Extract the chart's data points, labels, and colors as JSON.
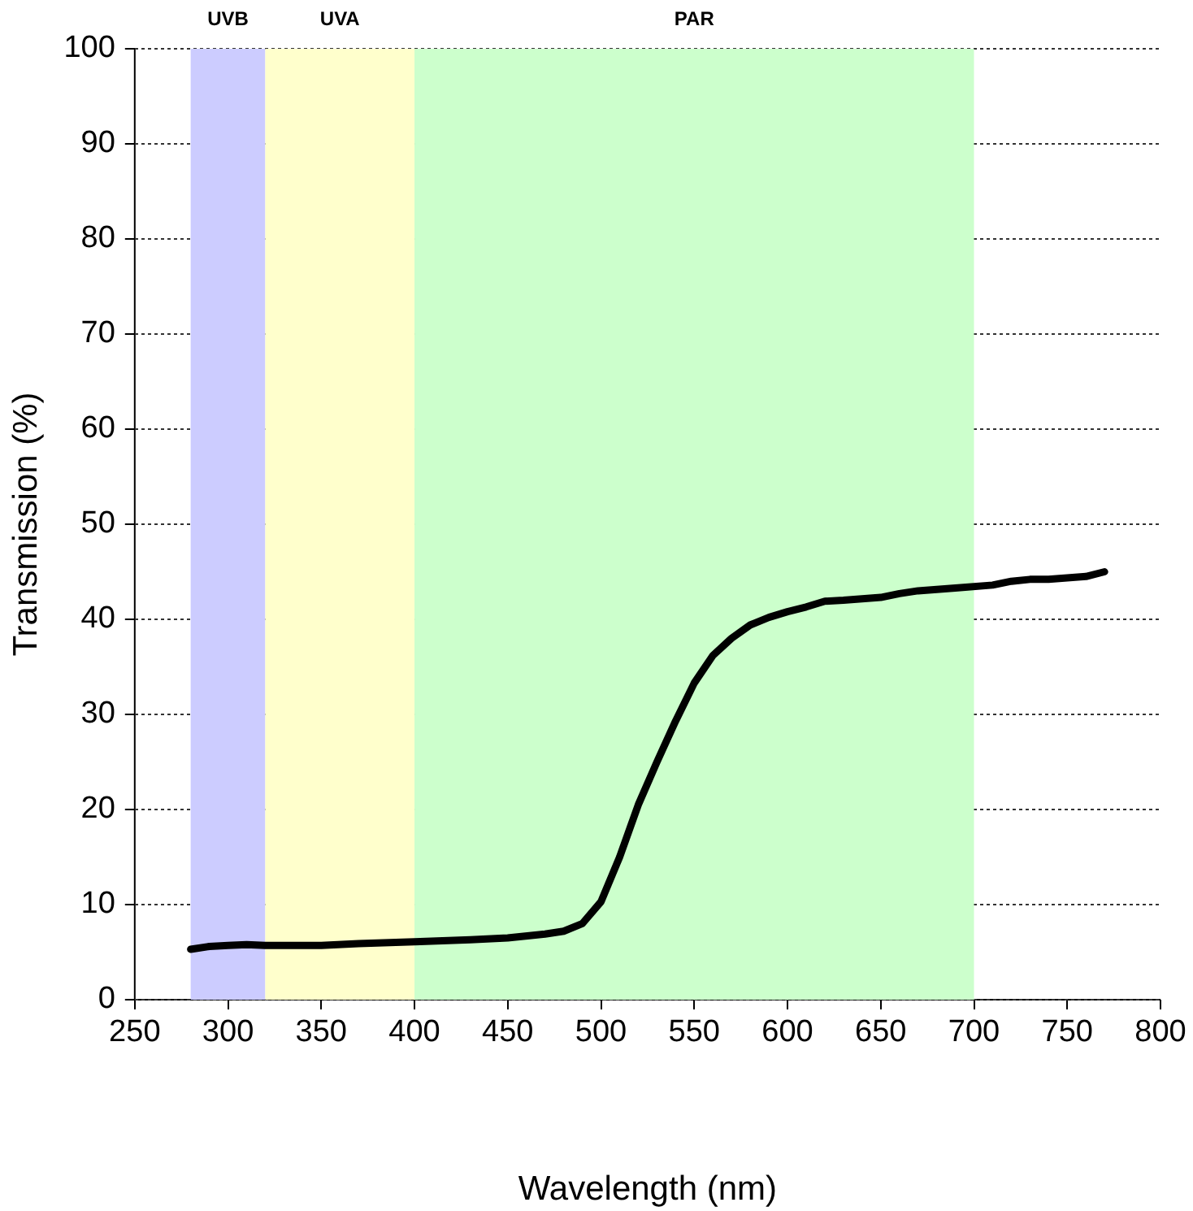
{
  "chart_data": {
    "type": "line",
    "xlabel": "Wavelength (nm)",
    "ylabel": "Transmission (%)",
    "x": [
      280,
      290,
      300,
      310,
      320,
      350,
      370,
      400,
      430,
      450,
      470,
      480,
      490,
      500,
      510,
      520,
      530,
      540,
      550,
      560,
      570,
      580,
      590,
      600,
      610,
      620,
      630,
      650,
      660,
      670,
      690,
      710,
      720,
      730,
      740,
      760,
      770
    ],
    "series": [
      {
        "color": "#000000",
        "values": [
          5.3,
          5.6,
          5.7,
          5.8,
          5.7,
          5.7,
          5.9,
          6.1,
          6.3,
          6.5,
          6.9,
          7.2,
          8.0,
          10.3,
          15,
          20.5,
          25,
          29.3,
          33.3,
          36.2,
          38,
          39.4,
          40.2,
          40.8,
          41.3,
          41.9,
          42,
          42.3,
          42.7,
          43,
          43.3,
          43.6,
          44,
          44.2,
          44.2,
          44.5,
          45
        ]
      }
    ],
    "xlim": [
      250,
      800
    ],
    "xticks": [
      250,
      300,
      350,
      400,
      450,
      500,
      550,
      600,
      650,
      700,
      750,
      800
    ],
    "ylim": [
      0,
      100
    ],
    "yticks": [
      0,
      10,
      20,
      30,
      40,
      50,
      60,
      70,
      80,
      90,
      100
    ],
    "bands": [
      {
        "axis": "x",
        "from": 280,
        "to": 320,
        "label": "UVB",
        "color": "#ccccff"
      },
      {
        "axis": "x",
        "from": 320,
        "to": 400,
        "label": "UVA",
        "color": "#ffffcc"
      },
      {
        "axis": "x",
        "from": 400,
        "to": 700,
        "label": "PAR",
        "color": "#ccffcc"
      }
    ],
    "grid": "y",
    "legend": false,
    "marker": "none",
    "line_style": "solid"
  }
}
